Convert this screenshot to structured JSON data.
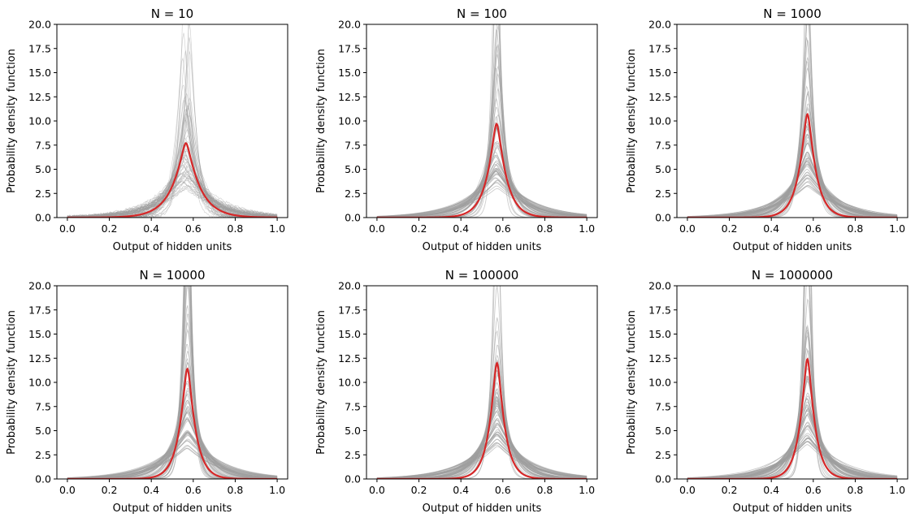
{
  "chart_data": [
    {
      "type": "line",
      "title": "N = 10",
      "xlabel": "Output of hidden units",
      "ylabel": "Probability density function",
      "xlim": [
        -0.05,
        1.05
      ],
      "ylim": [
        0,
        20
      ],
      "xticks": [
        "0.0",
        "0.2",
        "0.4",
        "0.6",
        "0.8",
        "1.0"
      ],
      "yticks": [
        "0.0",
        "2.5",
        "5.0",
        "7.5",
        "10.0",
        "12.5",
        "15.0",
        "17.5",
        "20.0"
      ],
      "mean_curve": {
        "center": 0.565,
        "peak": 7.7,
        "width": 0.065
      },
      "sample_curves": {
        "count": 60,
        "color": "#9e9e9e",
        "opacity": 0.45,
        "center_spread": 0.02,
        "peak_min": 2.5,
        "peak_max": 30,
        "width_min": 0.02,
        "width_max": 0.16
      }
    },
    {
      "type": "line",
      "title": "N = 100",
      "xlabel": "Output of hidden units",
      "ylabel": "Probability density function",
      "xlim": [
        -0.05,
        1.05
      ],
      "ylim": [
        0,
        20
      ],
      "xticks": [
        "0.0",
        "0.2",
        "0.4",
        "0.6",
        "0.8",
        "1.0"
      ],
      "yticks": [
        "0.0",
        "2.5",
        "5.0",
        "7.5",
        "10.0",
        "12.5",
        "15.0",
        "17.5",
        "20.0"
      ],
      "mean_curve": {
        "center": 0.57,
        "peak": 9.7,
        "width": 0.045
      },
      "sample_curves": {
        "count": 60,
        "color": "#9e9e9e",
        "opacity": 0.5,
        "center_spread": 0.008,
        "peak_min": 2.0,
        "peak_max": 34,
        "width_min": 0.012,
        "width_max": 0.16
      }
    },
    {
      "type": "line",
      "title": "N = 1000",
      "xlabel": "Output of hidden units",
      "ylabel": "Probability density function",
      "xlim": [
        -0.05,
        1.05
      ],
      "ylim": [
        0,
        20
      ],
      "xticks": [
        "0.0",
        "0.2",
        "0.4",
        "0.6",
        "0.8",
        "1.0"
      ],
      "yticks": [
        "0.0",
        "2.5",
        "5.0",
        "7.5",
        "10.0",
        "12.5",
        "15.0",
        "17.5",
        "20.0"
      ],
      "mean_curve": {
        "center": 0.572,
        "peak": 10.7,
        "width": 0.04
      },
      "sample_curves": {
        "count": 60,
        "color": "#9e9e9e",
        "opacity": 0.55,
        "center_spread": 0.004,
        "peak_min": 2.5,
        "peak_max": 38,
        "width_min": 0.01,
        "width_max": 0.16
      }
    },
    {
      "type": "line",
      "title": "N = 10000",
      "xlabel": "Output of hidden units",
      "ylabel": "Probability density function",
      "xlim": [
        -0.05,
        1.05
      ],
      "ylim": [
        0,
        20
      ],
      "xticks": [
        "0.0",
        "0.2",
        "0.4",
        "0.6",
        "0.8",
        "1.0"
      ],
      "yticks": [
        "0.0",
        "2.5",
        "5.0",
        "7.5",
        "10.0",
        "12.5",
        "15.0",
        "17.5",
        "20.0"
      ],
      "mean_curve": {
        "center": 0.572,
        "peak": 11.4,
        "width": 0.038
      },
      "sample_curves": {
        "count": 60,
        "color": "#9e9e9e",
        "opacity": 0.55,
        "center_spread": 0.003,
        "peak_min": 2.5,
        "peak_max": 40,
        "width_min": 0.01,
        "width_max": 0.16
      }
    },
    {
      "type": "line",
      "title": "N = 100000",
      "xlabel": "Output of hidden units",
      "ylabel": "Probability density function",
      "xlim": [
        -0.05,
        1.05
      ],
      "ylim": [
        0,
        20
      ],
      "xticks": [
        "0.0",
        "0.2",
        "0.4",
        "0.6",
        "0.8",
        "1.0"
      ],
      "yticks": [
        "0.0",
        "2.5",
        "5.0",
        "7.5",
        "10.0",
        "12.5",
        "15.0",
        "17.5",
        "20.0"
      ],
      "mean_curve": {
        "center": 0.572,
        "peak": 12.0,
        "width": 0.036
      },
      "sample_curves": {
        "count": 60,
        "color": "#9e9e9e",
        "opacity": 0.55,
        "center_spread": 0.003,
        "peak_min": 2.5,
        "peak_max": 40,
        "width_min": 0.01,
        "width_max": 0.16
      }
    },
    {
      "type": "line",
      "title": "N = 1000000",
      "xlabel": "Output of hidden units",
      "ylabel": "Probability density function",
      "xlim": [
        -0.05,
        1.05
      ],
      "ylim": [
        0,
        20
      ],
      "xticks": [
        "0.0",
        "0.2",
        "0.4",
        "0.6",
        "0.8",
        "1.0"
      ],
      "yticks": [
        "0.0",
        "2.5",
        "5.0",
        "7.5",
        "10.0",
        "12.5",
        "15.0",
        "17.5",
        "20.0"
      ],
      "mean_curve": {
        "center": 0.572,
        "peak": 12.4,
        "width": 0.035
      },
      "sample_curves": {
        "count": 60,
        "color": "#9e9e9e",
        "opacity": 0.55,
        "center_spread": 0.003,
        "peak_min": 2.5,
        "peak_max": 40,
        "width_min": 0.01,
        "width_max": 0.16
      }
    }
  ],
  "colors": {
    "mean_curve": "#d62728",
    "samples": "#9e9e9e"
  }
}
